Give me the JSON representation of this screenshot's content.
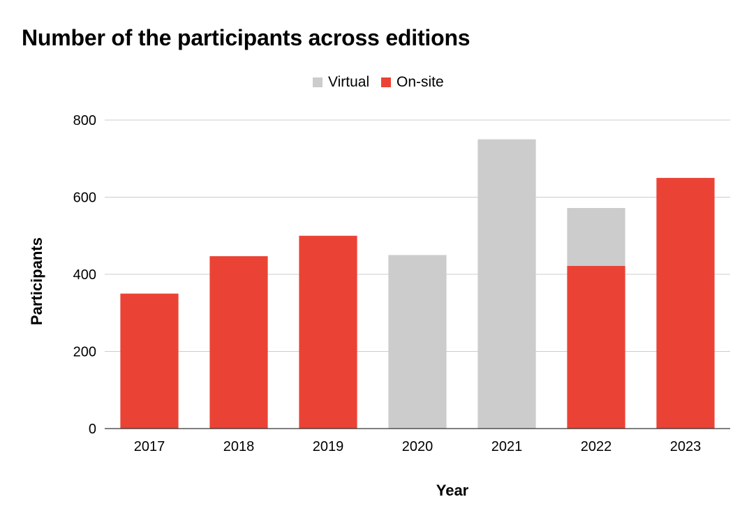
{
  "chart_data": {
    "type": "bar",
    "stacked": true,
    "title": "Number of the participants across editions",
    "xlabel": "Year",
    "ylabel": "Participants",
    "categories": [
      "2017",
      "2018",
      "2019",
      "2020",
      "2021",
      "2022",
      "2023"
    ],
    "series": [
      {
        "name": "On-site",
        "color": "#ea4335",
        "values": [
          350,
          447,
          500,
          0,
          0,
          422,
          650
        ]
      },
      {
        "name": "Virtual",
        "color": "#cccccc",
        "values": [
          0,
          0,
          0,
          450,
          750,
          150,
          0
        ]
      }
    ],
    "legend_order": [
      "Virtual",
      "On-site"
    ],
    "ylim": [
      0,
      800
    ],
    "yticks": [
      0,
      200,
      400,
      600,
      800
    ],
    "grid": true,
    "legend_position": "top-center"
  }
}
